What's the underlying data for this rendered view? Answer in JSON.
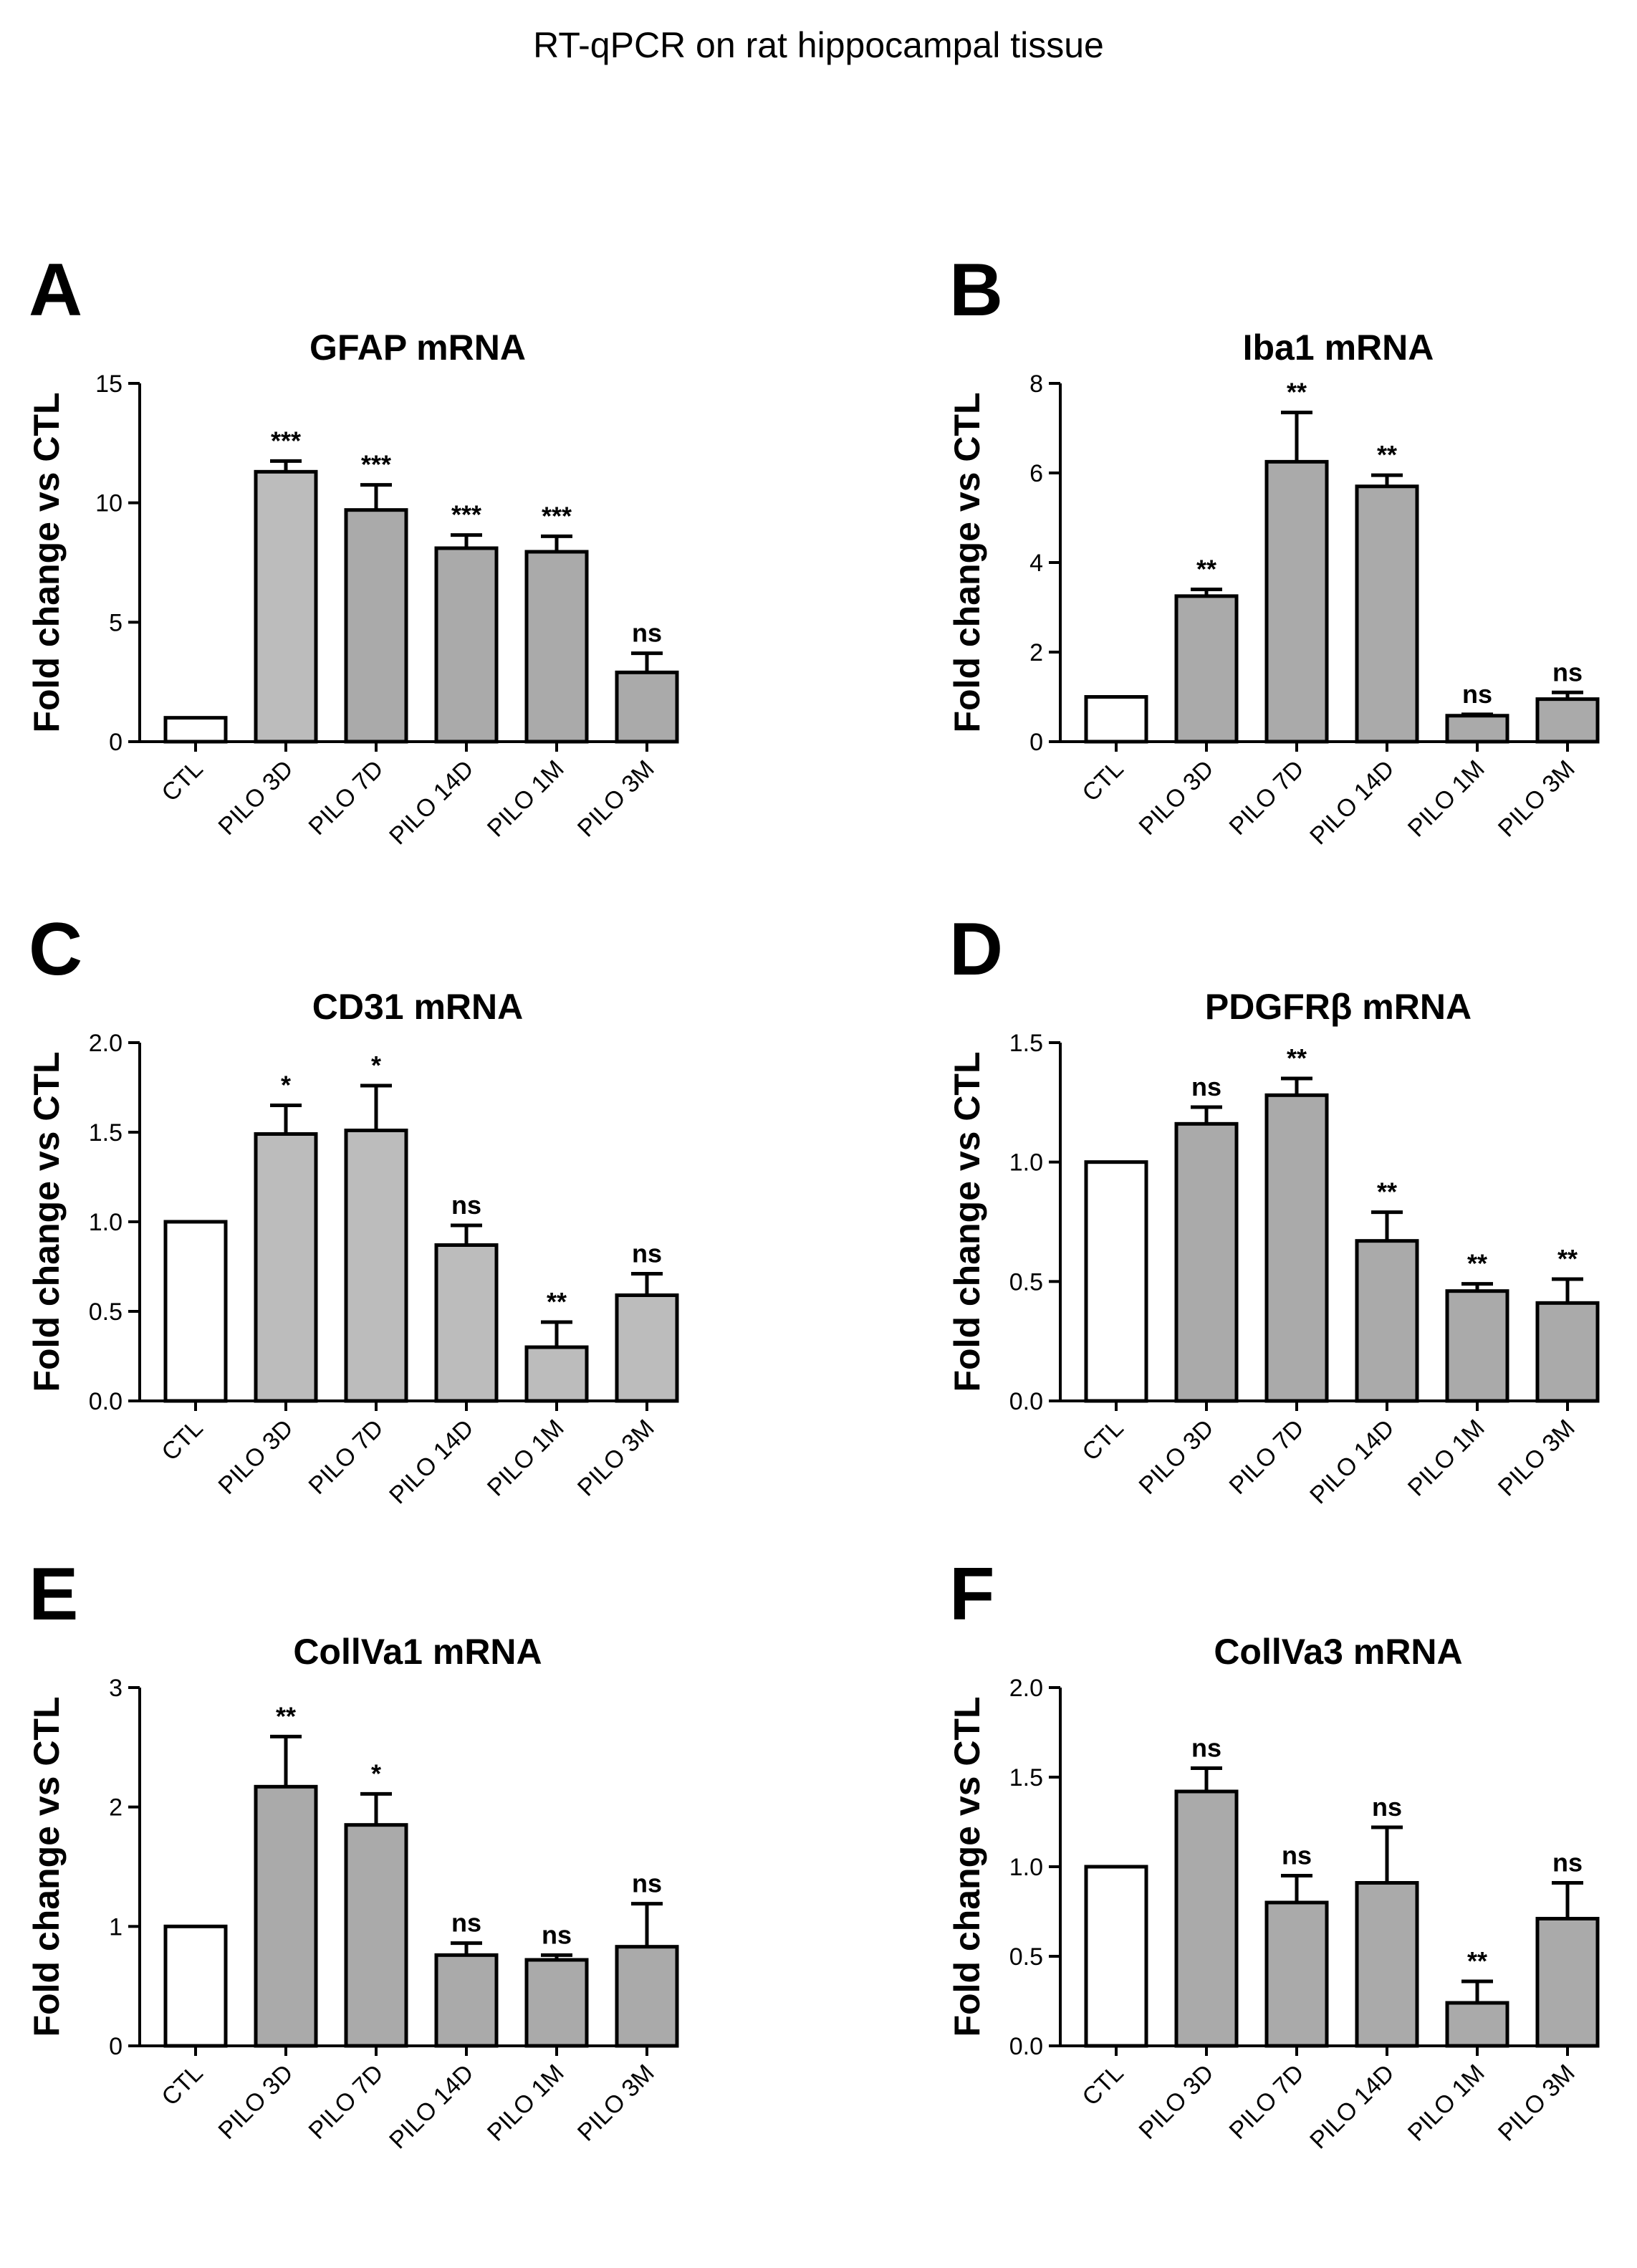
{
  "figure": {
    "title": "RT-qPCR on rat hippocampal tissue"
  },
  "chart_data": [
    {
      "panel": "A",
      "type": "bar",
      "title": "GFAP mRNA",
      "ylabel": "Fold change vs CTL",
      "xlabel": "",
      "categories": [
        "CTL",
        "PILO 3D",
        "PILO 7D",
        "PILO 14D",
        "PILO 1M",
        "PILO 3M"
      ],
      "values": [
        1.0,
        11.3,
        9.7,
        8.1,
        7.95,
        2.9
      ],
      "errors": [
        0,
        0.45,
        1.05,
        0.55,
        0.65,
        0.8
      ],
      "significance": [
        "",
        "***",
        "***",
        "***",
        "***",
        "ns"
      ],
      "ylim": [
        0,
        15
      ],
      "yticks": [
        0,
        5,
        10,
        15
      ],
      "ytick_labels": [
        "0",
        "5",
        "10",
        "15"
      ],
      "bar_colors": [
        "#ffffff",
        "#bcbcbc",
        "#aaaaaa",
        "#aaaaaa",
        "#aaaaaa",
        "#aaaaaa"
      ]
    },
    {
      "panel": "B",
      "type": "bar",
      "title": "Iba1 mRNA",
      "ylabel": "Fold change vs CTL",
      "xlabel": "",
      "categories": [
        "CTL",
        "PILO 3D",
        "PILO 7D",
        "PILO 14D",
        "PILO 1M",
        "PILO 3M"
      ],
      "values": [
        1.0,
        3.25,
        6.25,
        5.7,
        0.58,
        0.95
      ],
      "errors": [
        0,
        0.15,
        1.1,
        0.25,
        0.03,
        0.15
      ],
      "significance": [
        "",
        "**",
        "**",
        "**",
        "ns",
        "ns"
      ],
      "ylim": [
        0,
        8
      ],
      "yticks": [
        0,
        2,
        4,
        6,
        8
      ],
      "ytick_labels": [
        "0",
        "2",
        "4",
        "6",
        "8"
      ],
      "bar_colors": [
        "#ffffff",
        "#aaaaaa",
        "#aaaaaa",
        "#aaaaaa",
        "#aaaaaa",
        "#aaaaaa"
      ]
    },
    {
      "panel": "C",
      "type": "bar",
      "title": "CD31 mRNA",
      "ylabel": "Fold change vs CTL",
      "xlabel": "",
      "categories": [
        "CTL",
        "PILO 3D",
        "PILO 7D",
        "PILO 14D",
        "PILO 1M",
        "PILO 3M"
      ],
      "values": [
        1.0,
        1.49,
        1.51,
        0.87,
        0.3,
        0.59
      ],
      "errors": [
        0,
        0.16,
        0.25,
        0.11,
        0.14,
        0.12
      ],
      "significance": [
        "",
        "*",
        "*",
        "ns",
        "**",
        "ns"
      ],
      "ylim": [
        0,
        2.0
      ],
      "yticks": [
        0,
        0.5,
        1.0,
        1.5,
        2.0
      ],
      "ytick_labels": [
        "0.0",
        "0.5",
        "1.0",
        "1.5",
        "2.0"
      ],
      "bar_colors": [
        "#ffffff",
        "#bcbcbc",
        "#bcbcbc",
        "#bcbcbc",
        "#bcbcbc",
        "#bcbcbc"
      ]
    },
    {
      "panel": "D",
      "type": "bar",
      "title": "PDGFRβ mRNA",
      "ylabel": "Fold change vs CTL",
      "xlabel": "",
      "categories": [
        "CTL",
        "PILO 3D",
        "PILO 7D",
        "PILO 14D",
        "PILO 1M",
        "PILO 3M"
      ],
      "values": [
        1.0,
        1.16,
        1.28,
        0.67,
        0.46,
        0.41
      ],
      "errors": [
        0,
        0.07,
        0.07,
        0.12,
        0.03,
        0.1
      ],
      "significance": [
        "",
        "ns",
        "**",
        "**",
        "**",
        "**"
      ],
      "ylim": [
        0,
        1.5
      ],
      "yticks": [
        0,
        0.5,
        1.0,
        1.5
      ],
      "ytick_labels": [
        "0.0",
        "0.5",
        "1.0",
        "1.5"
      ],
      "bar_colors": [
        "#ffffff",
        "#aaaaaa",
        "#aaaaaa",
        "#aaaaaa",
        "#aaaaaa",
        "#aaaaaa"
      ]
    },
    {
      "panel": "E",
      "type": "bar",
      "title": "CollVa1 mRNA",
      "ylabel": "Fold change vs CTL",
      "xlabel": "",
      "categories": [
        "CTL",
        "PILO 3D",
        "PILO 7D",
        "PILO 14D",
        "PILO 1M",
        "PILO 3M"
      ],
      "values": [
        1.0,
        2.17,
        1.85,
        0.76,
        0.72,
        0.83
      ],
      "errors": [
        0,
        0.42,
        0.26,
        0.1,
        0.04,
        0.36
      ],
      "significance": [
        "",
        "**",
        "*",
        "ns",
        "ns",
        "ns"
      ],
      "ylim": [
        0,
        3
      ],
      "yticks": [
        0,
        1,
        2,
        3
      ],
      "ytick_labels": [
        "0",
        "1",
        "2",
        "3"
      ],
      "bar_colors": [
        "#ffffff",
        "#aaaaaa",
        "#aaaaaa",
        "#aaaaaa",
        "#aaaaaa",
        "#aaaaaa"
      ]
    },
    {
      "panel": "F",
      "type": "bar",
      "title": "CollVa3 mRNA",
      "ylabel": "Fold change vs CTL",
      "xlabel": "",
      "categories": [
        "CTL",
        "PILO 3D",
        "PILO 7D",
        "PILO 14D",
        "PILO 1M",
        "PILO 3M"
      ],
      "values": [
        1.0,
        1.42,
        0.8,
        0.91,
        0.24,
        0.71
      ],
      "errors": [
        0,
        0.13,
        0.15,
        0.31,
        0.12,
        0.2
      ],
      "significance": [
        "",
        "ns",
        "ns",
        "ns",
        "**",
        "ns"
      ],
      "ylim": [
        0,
        2.0
      ],
      "yticks": [
        0,
        0.5,
        1.0,
        1.5,
        2.0
      ],
      "ytick_labels": [
        "0.0",
        "0.5",
        "1.0",
        "1.5",
        "2.0"
      ],
      "bar_colors": [
        "#ffffff",
        "#aaaaaa",
        "#aaaaaa",
        "#aaaaaa",
        "#aaaaaa",
        "#aaaaaa"
      ]
    }
  ]
}
